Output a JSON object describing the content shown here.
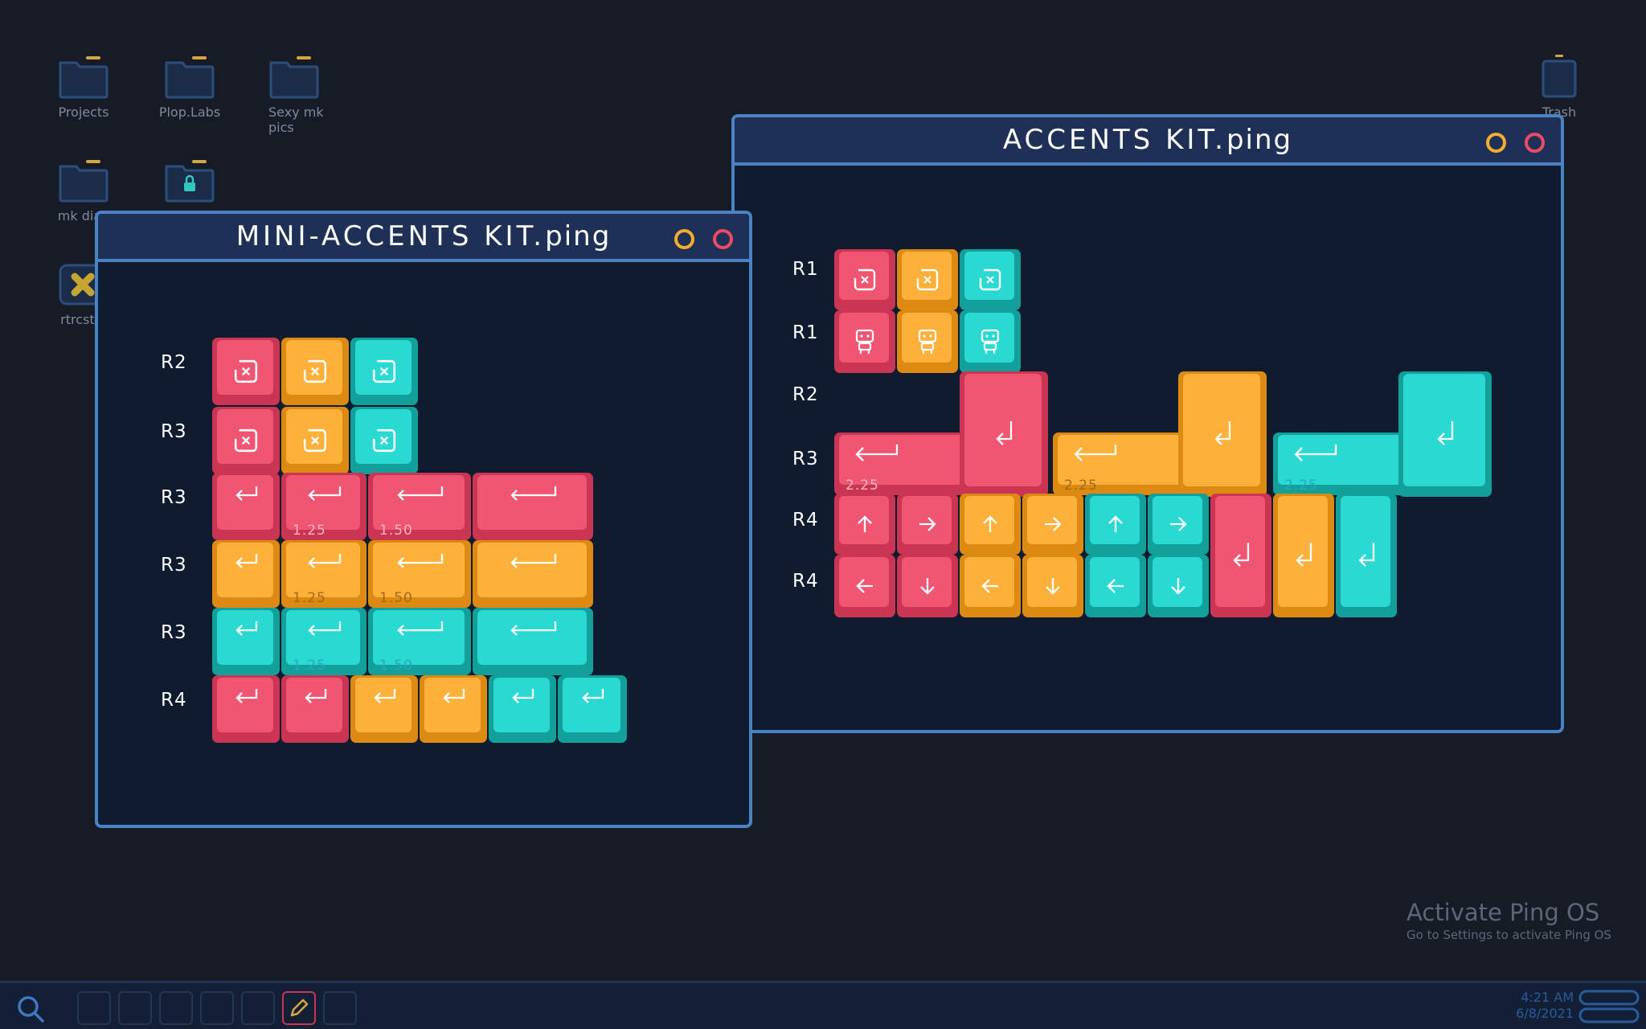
{
  "desktop": {
    "icons": [
      {
        "label": "Projects"
      },
      {
        "label": "Plop.Labs"
      },
      {
        "label": "Sexy mk pics"
      },
      {
        "label": "mk diag"
      },
      {
        "label": ""
      },
      {
        "label": "rtrcst.p"
      },
      {
        "label": "Trash"
      }
    ]
  },
  "activate": {
    "title": "Activate Ping OS",
    "subtitle": "Go to Settings to activate Ping OS"
  },
  "window_mini": {
    "title": "MINI-ACCENTS KIT.",
    "ext": "ping",
    "rows": [
      "R2",
      "R3",
      "R3",
      "R3",
      "R3",
      "R4"
    ],
    "sizes": {
      "s125": "1.25",
      "s150": "1.50"
    }
  },
  "window_accents": {
    "title": "ACCENTS KIT.",
    "ext": "ping",
    "rows": [
      "R1",
      "R1",
      "R2",
      "R3",
      "R4",
      "R4"
    ],
    "sizes": {
      "s225": "2.25"
    }
  },
  "taskbar": {
    "time": "4:21 AM",
    "date": "6/8/2021"
  },
  "colors": {
    "pink": "#f05571",
    "orange": "#fdb13b",
    "teal": "#29d9d2",
    "window_border": "#4a82c4",
    "desktop": "#171b26"
  }
}
